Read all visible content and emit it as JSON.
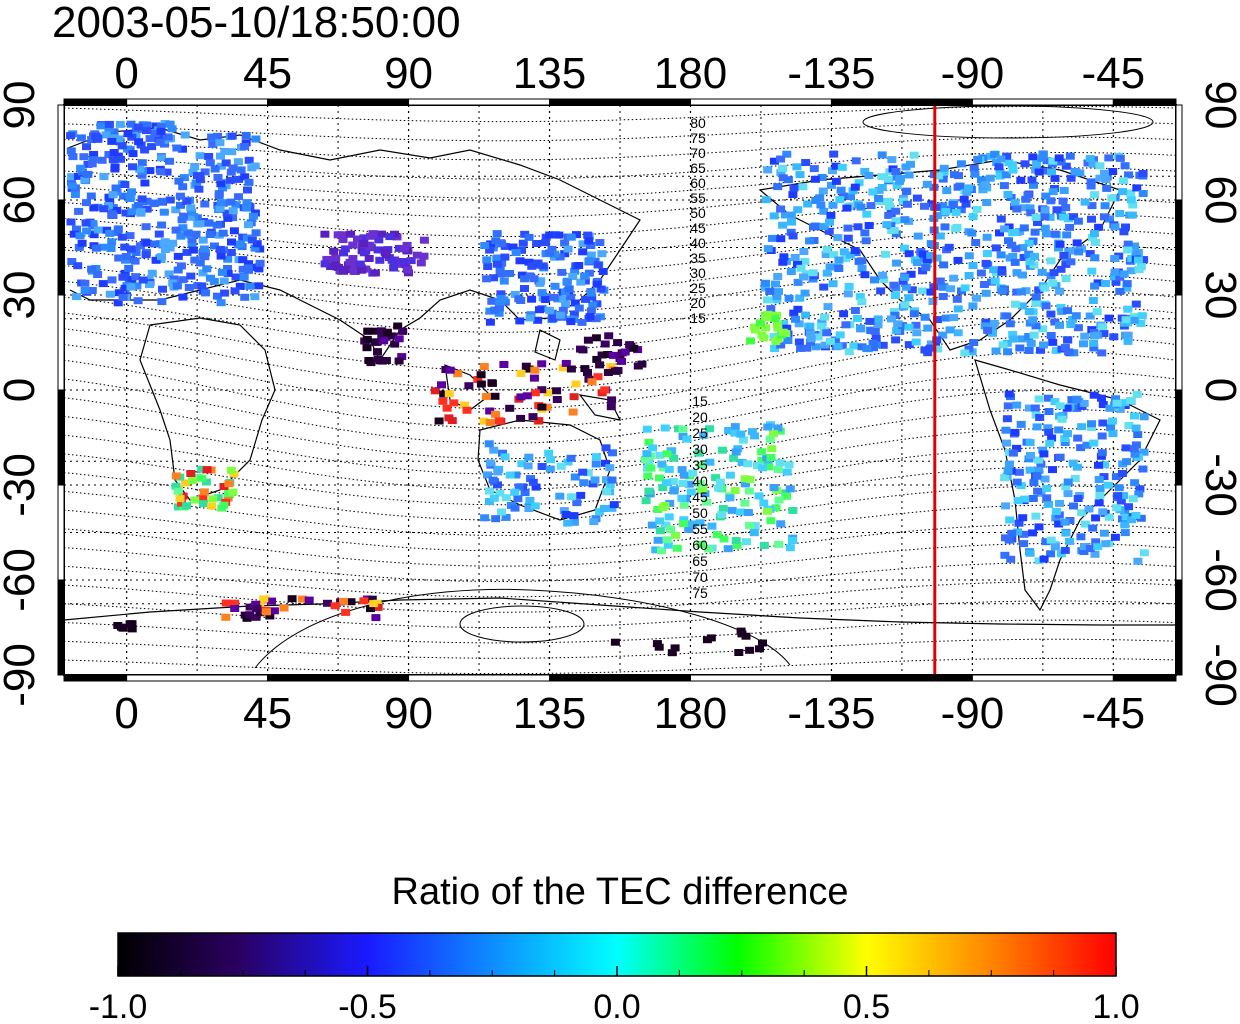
{
  "title": "2003-05-10/18:50:00",
  "map": {
    "lon_ticks": [
      "0",
      "45",
      "90",
      "135",
      "180",
      "-135",
      "-90",
      "-45"
    ],
    "lon_tick_values": [
      0,
      45,
      90,
      135,
      180,
      225,
      270,
      315
    ],
    "lat_ticks": [
      "90",
      "60",
      "30",
      "0",
      "-30",
      "-60",
      "-90"
    ],
    "lat_tick_values": [
      90,
      60,
      30,
      0,
      -30,
      -60,
      -90
    ],
    "lon_range": [
      -20,
      335
    ],
    "lat_range": [
      -90,
      90
    ],
    "marker_longitude": 258,
    "marker_color": "#e00000",
    "magnetic_latitude_labels_north": [
      "80",
      "75",
      "70",
      "65",
      "60",
      "55",
      "50",
      "45",
      "40",
      "35",
      "30",
      "25",
      "20",
      "15"
    ],
    "magnetic_latitude_labels_south": [
      "15",
      "20",
      "25",
      "30",
      "35",
      "40",
      "45",
      "50",
      "55",
      "60",
      "65",
      "70",
      "75"
    ]
  },
  "colorbar": {
    "title": "Ratio of the TEC difference",
    "min": -1.0,
    "max": 1.0,
    "tick_labels": [
      "-1.0",
      "-0.5",
      "0.0",
      "0.5",
      "1.0"
    ],
    "tick_values": [
      -1.0,
      -0.5,
      0.0,
      0.5,
      1.0
    ],
    "colors": [
      "#000000",
      "#3a0070",
      "#1a1aff",
      "#00ffff",
      "#00ff00",
      "#ffff00",
      "#ff7f00",
      "#ff0000"
    ]
  }
}
